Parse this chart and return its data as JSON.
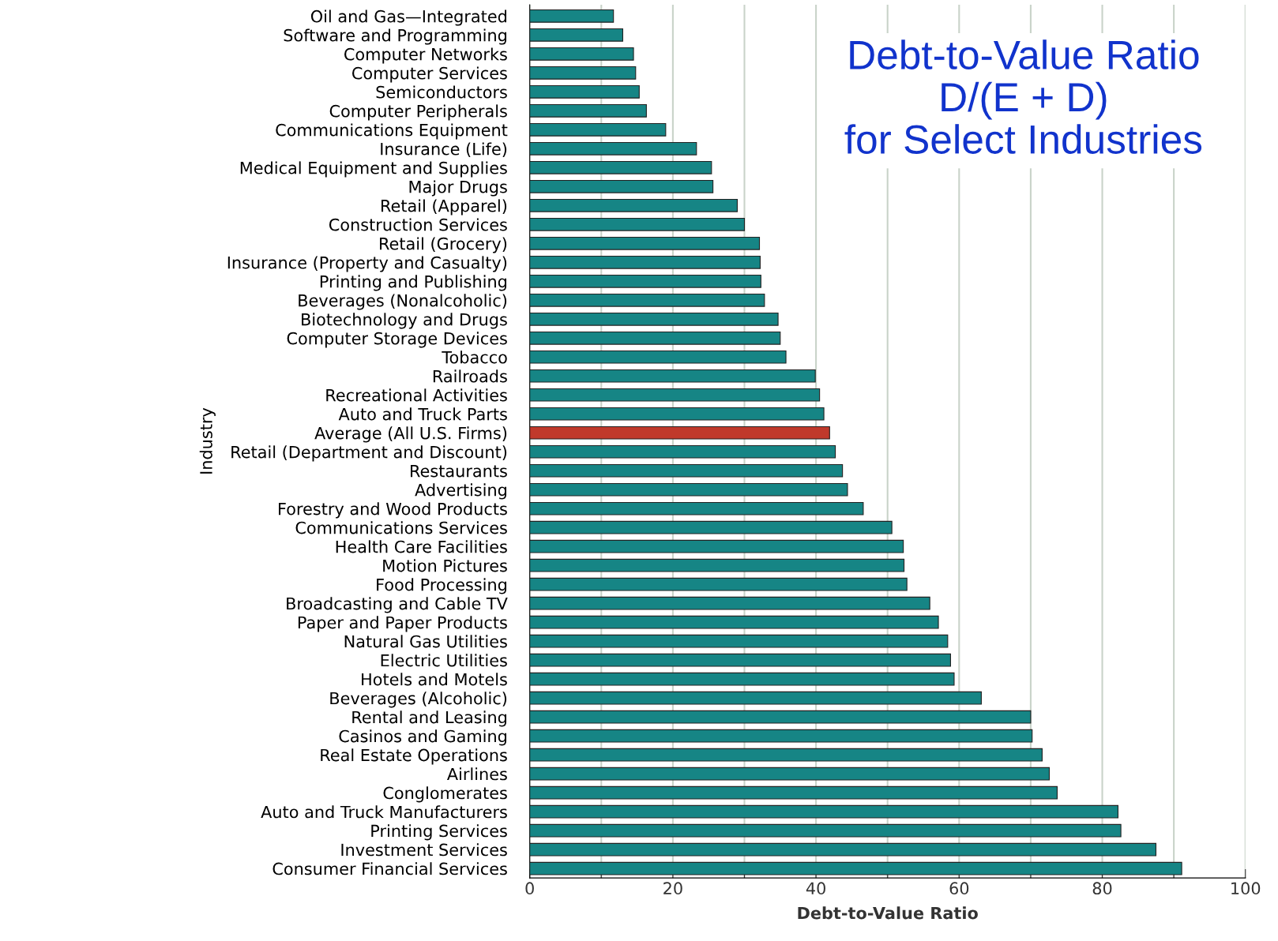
{
  "chart_data": {
    "type": "bar",
    "orientation": "horizontal",
    "title": "Debt-to-Value Ratio\nD/(E + D)\nfor Select Industries",
    "xlabel": "Debt-to-Value Ratio",
    "ylabel": "Industry",
    "categories": [
      "Oil and Gas—Integrated",
      "Software and Programming",
      "Computer Networks",
      "Computer Services",
      "Semiconductors",
      "Computer Peripherals",
      "Communications Equipment",
      "Insurance (Life)",
      "Medical Equipment and Supplies",
      "Major Drugs",
      "Retail (Apparel)",
      "Construction Services",
      "Retail (Grocery)",
      "Insurance (Property and Casualty)",
      "Printing and Publishing",
      "Beverages (Nonalcoholic)",
      "Biotechnology and Drugs",
      "Computer Storage Devices",
      "Tobacco",
      "Railroads",
      "Recreational Activities",
      "Auto and Truck Parts",
      "Average (All U.S. Firms)",
      "Retail (Department and Discount)",
      "Restaurants",
      "Advertising",
      "Forestry and Wood Products",
      "Communications Services",
      "Health Care Facilities",
      "Motion Pictures",
      "Food Processing",
      "Broadcasting and Cable TV",
      "Paper and Paper Products",
      "Natural Gas Utilities",
      "Electric Utilities",
      "Hotels and Motels",
      "Beverages (Alcoholic)",
      "Rental and Leasing",
      "Casinos and Gaming",
      "Real Estate Operations",
      "Airlines",
      "Conglomerates",
      "Auto and Truck Manufacturers",
      "Printing Services",
      "Investment Services",
      "Consumer Financial Services"
    ],
    "values": [
      11.7,
      13.0,
      14.5,
      14.8,
      15.3,
      16.3,
      19.0,
      23.3,
      25.4,
      25.6,
      29.0,
      30.0,
      32.1,
      32.2,
      32.3,
      32.8,
      34.7,
      35.0,
      35.8,
      39.9,
      40.5,
      41.1,
      41.9,
      42.7,
      43.7,
      44.4,
      46.6,
      50.6,
      52.2,
      52.3,
      52.7,
      55.9,
      57.1,
      58.4,
      58.8,
      59.3,
      63.1,
      70.0,
      70.2,
      71.6,
      72.6,
      73.7,
      82.2,
      82.6,
      87.5,
      91.1
    ],
    "colors": [
      "#168585",
      "#168585",
      "#168585",
      "#168585",
      "#168585",
      "#168585",
      "#168585",
      "#168585",
      "#168585",
      "#168585",
      "#168585",
      "#168585",
      "#168585",
      "#168585",
      "#168585",
      "#168585",
      "#168585",
      "#168585",
      "#168585",
      "#168585",
      "#168585",
      "#168585",
      "#c0392b",
      "#168585",
      "#168585",
      "#168585",
      "#168585",
      "#168585",
      "#168585",
      "#168585",
      "#168585",
      "#168585",
      "#168585",
      "#168585",
      "#168585",
      "#168585",
      "#168585",
      "#168585",
      "#168585",
      "#168585",
      "#168585",
      "#168585",
      "#168585",
      "#168585",
      "#168585",
      "#168585"
    ],
    "xlim": [
      0,
      100
    ],
    "xticks": [
      0,
      {
        "value": 10,
        "label": null
      },
      20,
      {
        "value": 30,
        "label": null
      },
      40,
      {
        "value": 50,
        "label": null
      },
      60,
      {
        "value": 70,
        "label": null
      },
      80,
      {
        "value": 90,
        "label": null
      },
      100
    ],
    "grid": "x"
  }
}
